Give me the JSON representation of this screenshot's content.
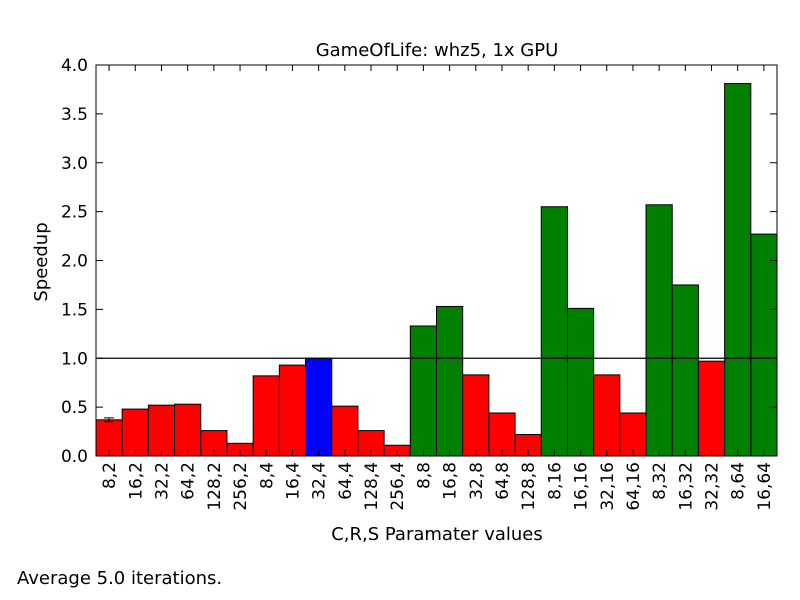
{
  "chart_data": {
    "type": "bar",
    "title": "GameOfLife: whz5, 1x GPU",
    "xlabel": "C,R,S Paramater values",
    "ylabel": "Speedup",
    "ylim": [
      0,
      4.0
    ],
    "yticks": [
      "0.0",
      "0.5",
      "1.0",
      "1.5",
      "2.0",
      "2.5",
      "3.0",
      "3.5",
      "4.0"
    ],
    "grid": false,
    "reference_line": 1.0,
    "categories": [
      "8,2",
      "16,2",
      "32,2",
      "64,2",
      "128,2",
      "256,2",
      "8,4",
      "16,4",
      "32,4",
      "64,4",
      "128,4",
      "256,4",
      "8,8",
      "16,8",
      "32,8",
      "64,8",
      "128,8",
      "8,16",
      "16,16",
      "32,16",
      "64,16",
      "8,32",
      "16,32",
      "32,32",
      "8,64",
      "16,64"
    ],
    "values": [
      0.37,
      0.48,
      0.52,
      0.53,
      0.26,
      0.13,
      0.82,
      0.93,
      1.0,
      0.51,
      0.26,
      0.11,
      1.33,
      1.53,
      0.83,
      0.44,
      0.22,
      2.55,
      1.51,
      0.83,
      0.44,
      2.57,
      1.75,
      0.97,
      3.81,
      2.27
    ],
    "bar_colors": [
      "red",
      "red",
      "red",
      "red",
      "red",
      "red",
      "red",
      "red",
      "blue",
      "red",
      "red",
      "red",
      "green",
      "green",
      "red",
      "red",
      "red",
      "green",
      "green",
      "red",
      "red",
      "green",
      "green",
      "red",
      "green",
      "green"
    ],
    "colors": {
      "red": "#ff0000",
      "blue": "#0000ff",
      "green": "#008000"
    }
  },
  "footnote": "Average 5.0 iterations."
}
